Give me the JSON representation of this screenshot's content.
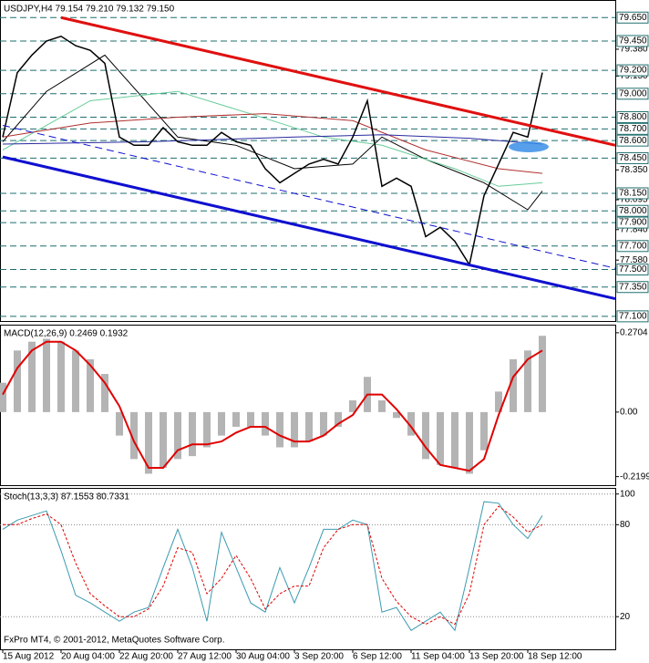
{
  "chart_data": [
    {
      "type": "line",
      "title": "USDJPY,H4  79.154 79.210 79.132 79.150",
      "color": "#000000",
      "categories": [
        "15 Aug 2012",
        null,
        null,
        null,
        "20 Aug 04:00",
        null,
        null,
        null,
        "22 Aug 20:00",
        null,
        null,
        null,
        "27 Aug 12:00",
        null,
        null,
        null,
        "30 Aug 04:00",
        null,
        null,
        null,
        "3 Sep 20:00",
        null,
        null,
        null,
        "6 Sep 12:00",
        null,
        null,
        null,
        "11 Sep 04:00",
        null,
        null,
        null,
        "13 Sep 20:00",
        null,
        null,
        null,
        "18 Sep 12:00",
        null
      ],
      "values": [
        78.63,
        79.18,
        79.33,
        79.45,
        79.49,
        79.41,
        79.37,
        79.26,
        78.63,
        78.56,
        78.56,
        78.71,
        78.59,
        78.56,
        78.56,
        78.67,
        78.59,
        78.56,
        78.36,
        78.24,
        78.32,
        78.4,
        78.44,
        78.4,
        78.63,
        78.94,
        78.21,
        78.28,
        78.21,
        77.78,
        77.86,
        77.74,
        77.54,
        78.13,
        78.4,
        78.67,
        78.63,
        79.18
      ],
      "moving_averages": [
        {
          "color": "#000000",
          "x": [
            0,
            3,
            7,
            12,
            16,
            20,
            24,
            26,
            29,
            33,
            36,
            37
          ],
          "values": [
            78.59,
            79.02,
            79.33,
            78.63,
            78.56,
            78.36,
            78.4,
            78.63,
            78.44,
            78.24,
            78.01,
            78.17
          ]
        },
        {
          "color": "#66cc99",
          "x": [
            0,
            6,
            12,
            18,
            22,
            26,
            31,
            34,
            37
          ],
          "values": [
            78.52,
            78.94,
            79.02,
            78.79,
            78.63,
            78.56,
            78.36,
            78.21,
            78.24
          ]
        },
        {
          "color": "#b03030",
          "x": [
            0,
            6,
            12,
            18,
            24,
            29,
            34,
            37
          ],
          "values": [
            78.63,
            78.75,
            78.8,
            78.83,
            78.77,
            78.52,
            78.36,
            78.32
          ]
        },
        {
          "color": "#2a2aa0",
          "x": [
            0,
            10,
            20,
            26,
            32,
            37
          ],
          "values": [
            78.57,
            78.59,
            78.63,
            78.65,
            78.62,
            78.57
          ]
        }
      ],
      "trendlines": [
        {
          "color": "#e01010",
          "width": 3,
          "x": [
            4,
            42
          ],
          "values": [
            79.65,
            78.56
          ]
        },
        {
          "color": "#1010d0",
          "width": 3,
          "x": [
            0,
            42
          ],
          "values": [
            78.46,
            77.25
          ]
        },
        {
          "color": "#1010d0",
          "width": 1,
          "dashed": true,
          "x": [
            0,
            42
          ],
          "values": [
            78.73,
            77.51
          ]
        }
      ],
      "levels": [
        {
          "value": 79.65,
          "label": "79.650"
        },
        {
          "value": 79.45,
          "label": "79.450"
        },
        {
          "value": 79.2,
          "label": "79.200"
        },
        {
          "value": 79.0,
          "label": "79.000"
        },
        {
          "value": 78.8,
          "label": "78.800"
        },
        {
          "value": 78.7,
          "label": "78.700"
        },
        {
          "value": 78.6,
          "label": "78.600"
        },
        {
          "value": 78.45,
          "label": "78.450"
        },
        {
          "value": 78.15,
          "label": "78.150"
        },
        {
          "value": 78.0,
          "label": "78.000"
        },
        {
          "value": 77.9,
          "label": "77.900"
        },
        {
          "value": 77.7,
          "label": "77.700"
        },
        {
          "value": 77.5,
          "label": "77.500"
        },
        {
          "value": 77.35,
          "label": "77.350"
        },
        {
          "value": 77.1,
          "label": "77.100"
        }
      ],
      "level_color": "#1f6f6f",
      "ylim": [
        77.06,
        79.8
      ],
      "yticks": [
        {
          "value": 79.38,
          "label": "79.380"
        },
        {
          "value": 79.15,
          "label": "79.150"
        },
        {
          "value": 78.35,
          "label": "78.350"
        },
        78.095,
        {
          "value": 77.84,
          "label": "77.840"
        },
        {
          "value": 77.58,
          "label": "77.580"
        }
      ],
      "grid": false
    },
    {
      "type": "macd",
      "title": "MACD(12,26,9) 0.2469 0.1932",
      "histogram": {
        "color": "#b4b4b4",
        "values": [
          0.1,
          0.21,
          0.24,
          0.25,
          0.24,
          0.21,
          0.18,
          0.13,
          -0.08,
          -0.16,
          -0.21,
          -0.19,
          -0.16,
          -0.15,
          -0.12,
          -0.08,
          -0.05,
          -0.05,
          -0.08,
          -0.12,
          -0.12,
          -0.1,
          -0.08,
          -0.05,
          0.04,
          0.12,
          0.04,
          -0.02,
          -0.08,
          -0.16,
          -0.18,
          -0.19,
          -0.21,
          -0.13,
          0.07,
          0.18,
          0.21,
          0.26
        ]
      },
      "signal": {
        "color": "#e00000",
        "values": [
          0.06,
          0.15,
          0.21,
          0.24,
          0.24,
          0.21,
          0.16,
          0.1,
          0.02,
          -0.1,
          -0.19,
          -0.19,
          -0.13,
          -0.11,
          -0.11,
          -0.1,
          -0.07,
          -0.05,
          -0.05,
          -0.08,
          -0.1,
          -0.1,
          -0.08,
          -0.04,
          -0.01,
          0.06,
          0.06,
          0.01,
          -0.05,
          -0.12,
          -0.18,
          -0.19,
          -0.2,
          -0.16,
          -0.01,
          0.12,
          0.18,
          0.21
        ]
      },
      "ylim": [
        -0.249,
        0.298
      ],
      "yticks": [
        0.2704,
        {
          "value": 0,
          "label": "0.00"
        },
        -0.2199
      ],
      "grid": false
    },
    {
      "type": "stochastic",
      "title": "Stoch(13,3,3) 87.1553 80.7331",
      "series": [
        {
          "color": "#3a9ab0",
          "values": [
            77,
            83,
            86,
            89,
            63,
            34,
            29,
            23,
            17,
            23,
            26,
            52,
            77,
            52,
            17,
            75,
            52,
            29,
            23,
            52,
            29,
            52,
            77,
            77,
            83,
            80,
            23,
            26,
            11,
            17,
            23,
            11,
            52,
            95,
            94,
            80,
            71,
            86
          ]
        },
        {
          "color": "#e00000",
          "dashed": true,
          "values": [
            80,
            80,
            84,
            87,
            80,
            55,
            35,
            27,
            20,
            20,
            25,
            40,
            65,
            62,
            35,
            45,
            60,
            45,
            25,
            35,
            40,
            40,
            65,
            77,
            80,
            80,
            45,
            30,
            20,
            15,
            20,
            15,
            35,
            80,
            92,
            85,
            75,
            80
          ]
        }
      ],
      "ylim": [
        -1.3,
        104
      ],
      "yticks": [
        100,
        80,
        20
      ],
      "grid": true,
      "footer": "FxPro MT4, © 2001-2012, MetaQuotes Software Corp."
    }
  ]
}
